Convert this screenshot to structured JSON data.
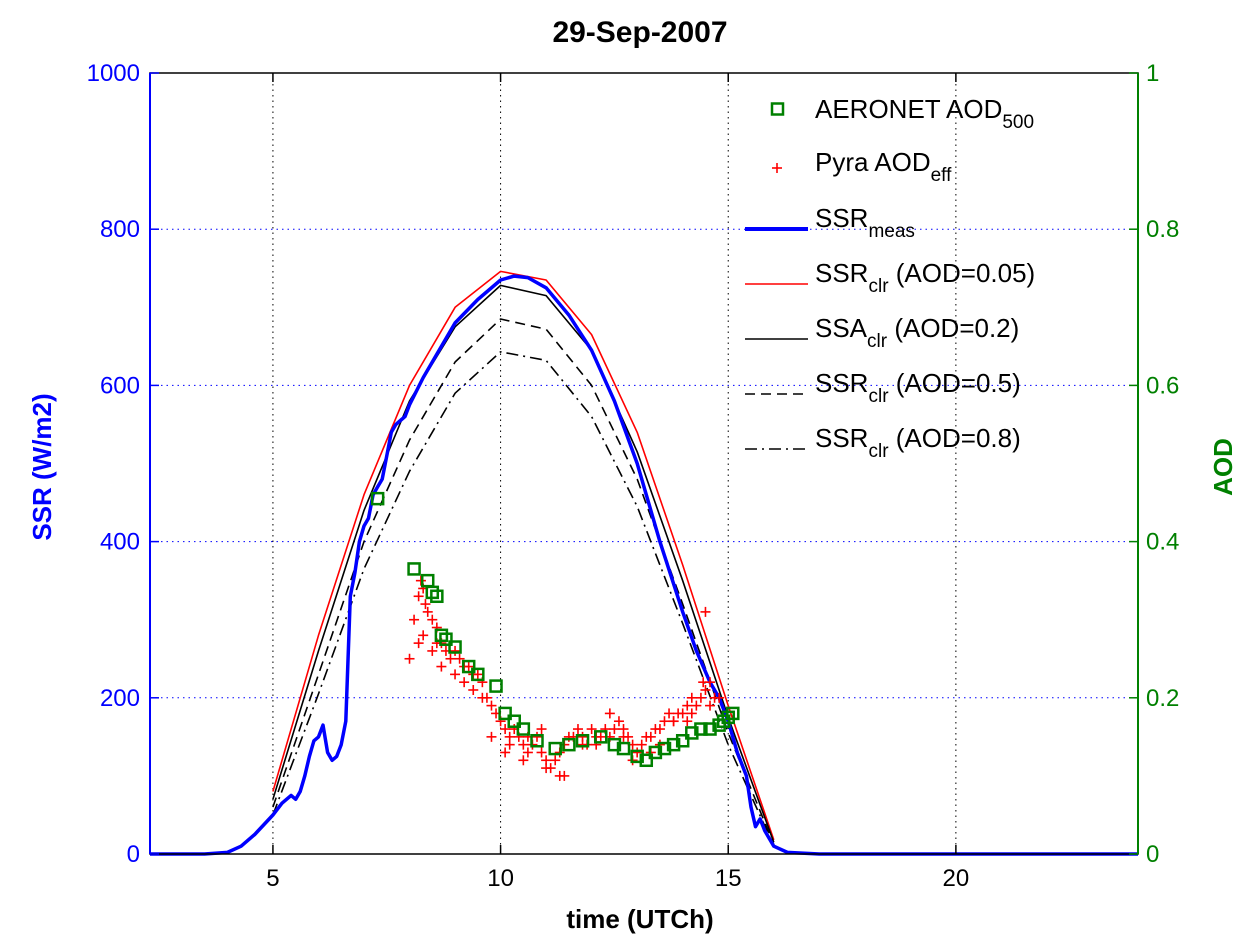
{
  "chart_data": {
    "type": "line",
    "title": "29-Sep-2007",
    "xlabel": "time (UTCh)",
    "ylabel_left": "SSR (W/m2)",
    "ylabel_right": "AOD",
    "xlim": [
      2.3,
      24
    ],
    "ylim_left": [
      0,
      1000
    ],
    "ylim_right": [
      0,
      1
    ],
    "xticks": [
      5,
      10,
      15,
      20
    ],
    "yticks_left": [
      0,
      200,
      400,
      600,
      800,
      1000
    ],
    "yticks_right": [
      "0",
      "0.2",
      "0.4",
      "0.6",
      "0.8",
      "1"
    ],
    "grid": true,
    "legend_position": "top-right",
    "colors": {
      "left_axis": "#0000ff",
      "right_axis": "#008000",
      "ssr_meas": "#0000ff",
      "ssr_clr_005": "#ff0000",
      "pyra": "#ff0000",
      "aeronet": "#008000",
      "black": "#000000"
    },
    "legend": [
      {
        "key": "aeronet",
        "text": "AERONET AOD",
        "sub": "500",
        "after": ""
      },
      {
        "key": "pyra",
        "text": "Pyra AOD",
        "sub": "eff",
        "after": ""
      },
      {
        "key": "ssr_meas",
        "text": "SSR",
        "sub": "meas",
        "after": ""
      },
      {
        "key": "ssr_clr_005",
        "text": "SSR",
        "sub": "clr",
        "after": " (AOD=0.05)"
      },
      {
        "key": "ssa_clr_02",
        "text": "SSA",
        "sub": "clr",
        "after": " (AOD=0.2)"
      },
      {
        "key": "ssr_clr_05",
        "text": "SSR",
        "sub": "clr",
        "after": " (AOD=0.5)"
      },
      {
        "key": "ssr_clr_08",
        "text": "SSR",
        "sub": "clr",
        "after": " (AOD=0.8)"
      }
    ],
    "series": [
      {
        "key": "ssr_clr_005",
        "axis": "left",
        "style": "solid",
        "color": "#ff0000",
        "x": [
          5,
          6,
          7,
          8,
          9,
          10,
          11,
          12,
          13,
          14,
          15,
          16
        ],
        "y": [
          80,
          280,
          460,
          600,
          700,
          746,
          735,
          665,
          540,
          370,
          190,
          18
        ]
      },
      {
        "key": "ssa_clr_02",
        "axis": "left",
        "style": "solid",
        "color": "#000000",
        "x": [
          5,
          6,
          7,
          8,
          9,
          10,
          11,
          12,
          13,
          14,
          15,
          16
        ],
        "y": [
          70,
          260,
          440,
          580,
          675,
          728,
          715,
          645,
          515,
          350,
          175,
          15
        ]
      },
      {
        "key": "ssr_clr_05",
        "axis": "left",
        "style": "dashed",
        "color": "#000000",
        "x": [
          5,
          6,
          7,
          8,
          9,
          10,
          11,
          12,
          13,
          14,
          15,
          16
        ],
        "y": [
          60,
          230,
          400,
          530,
          630,
          685,
          672,
          600,
          480,
          320,
          155,
          12
        ]
      },
      {
        "key": "ssr_clr_08",
        "axis": "left",
        "style": "dashdot",
        "color": "#000000",
        "x": [
          5,
          6,
          7,
          8,
          9,
          10,
          11,
          12,
          13,
          14,
          15,
          16
        ],
        "y": [
          50,
          205,
          365,
          490,
          590,
          643,
          632,
          560,
          445,
          295,
          140,
          10
        ]
      },
      {
        "key": "ssr_meas",
        "axis": "left",
        "style": "solid",
        "color": "#0000ff",
        "x": [
          2.3,
          3.5,
          4.0,
          4.3,
          4.6,
          5.0,
          5.2,
          5.4,
          5.5,
          5.6,
          5.7,
          5.8,
          5.9,
          6.0,
          6.1,
          6.2,
          6.3,
          6.4,
          6.5,
          6.6,
          6.7,
          6.8,
          6.9,
          7.0,
          7.1,
          7.2,
          7.3,
          7.4,
          7.5,
          7.6,
          7.7,
          7.8,
          7.9,
          8.0,
          8.3,
          8.6,
          9.0,
          9.5,
          10.0,
          10.3,
          10.6,
          11.0,
          11.5,
          12.0,
          12.5,
          13.0,
          13.5,
          14.0,
          14.3,
          14.6,
          14.8,
          15.0,
          15.2,
          15.4,
          15.5,
          15.6,
          15.7,
          15.8,
          16.0,
          16.3,
          17.0,
          24.0
        ],
        "y": [
          0,
          0,
          2,
          10,
          25,
          50,
          65,
          75,
          70,
          80,
          100,
          125,
          145,
          150,
          165,
          130,
          120,
          125,
          140,
          170,
          330,
          360,
          400,
          420,
          430,
          460,
          470,
          480,
          510,
          540,
          550,
          555,
          560,
          575,
          610,
          640,
          680,
          710,
          735,
          740,
          738,
          725,
          690,
          645,
          580,
          500,
          400,
          310,
          260,
          220,
          200,
          170,
          130,
          100,
          60,
          35,
          45,
          30,
          10,
          2,
          0,
          0
        ]
      }
    ],
    "aeronet_aod": {
      "x": [
        7.3,
        8.1,
        8.4,
        8.5,
        8.6,
        8.7,
        8.8,
        9.0,
        9.3,
        9.5,
        9.9,
        10.1,
        10.3,
        10.5,
        10.8,
        11.2,
        11.5,
        11.8,
        12.2,
        12.5,
        12.7,
        13.0,
        13.2,
        13.4,
        13.6,
        13.8,
        14.0,
        14.2,
        14.4,
        14.6,
        14.8,
        14.9,
        15.0,
        15.1
      ],
      "y": [
        0.455,
        0.365,
        0.35,
        0.335,
        0.33,
        0.28,
        0.275,
        0.265,
        0.24,
        0.23,
        0.215,
        0.18,
        0.17,
        0.16,
        0.145,
        0.135,
        0.14,
        0.145,
        0.15,
        0.14,
        0.135,
        0.125,
        0.12,
        0.13,
        0.135,
        0.14,
        0.145,
        0.155,
        0.16,
        0.16,
        0.165,
        0.17,
        0.175,
        0.18
      ]
    },
    "pyra_aod": {
      "x": [
        8.0,
        8.1,
        8.2,
        8.25,
        8.3,
        8.35,
        8.4,
        8.5,
        8.6,
        8.7,
        8.8,
        8.9,
        9.0,
        9.1,
        9.2,
        9.3,
        9.4,
        9.5,
        9.6,
        9.7,
        9.8,
        9.9,
        10.0,
        10.1,
        10.2,
        10.3,
        10.4,
        10.5,
        10.6,
        10.7,
        10.8,
        10.9,
        11.0,
        11.1,
        11.2,
        11.3,
        11.4,
        11.5,
        11.6,
        11.7,
        11.8,
        11.9,
        12.0,
        12.1,
        12.2,
        12.3,
        12.4,
        12.5,
        12.6,
        12.7,
        12.8,
        12.9,
        13.0,
        13.1,
        13.2,
        13.3,
        13.4,
        13.5,
        13.6,
        13.7,
        13.8,
        13.9,
        14.0,
        14.1,
        14.2,
        14.3,
        14.4,
        14.5,
        14.6,
        14.7,
        14.8,
        8.3,
        8.5,
        8.7,
        9.0,
        9.4,
        9.8,
        10.2,
        10.6,
        11.0,
        11.4,
        11.8,
        12.4,
        12.9,
        13.3,
        13.8,
        14.2,
        14.5,
        14.45,
        8.2,
        8.6,
        9.2,
        9.6,
        10.1,
        10.5,
        10.9,
        11.3,
        12.1,
        12.7,
        13.5,
        14.1,
        14.6
      ],
      "y": [
        0.25,
        0.3,
        0.33,
        0.35,
        0.34,
        0.32,
        0.31,
        0.3,
        0.27,
        0.27,
        0.26,
        0.25,
        0.26,
        0.25,
        0.24,
        0.24,
        0.23,
        0.23,
        0.22,
        0.2,
        0.19,
        0.18,
        0.17,
        0.16,
        0.15,
        0.16,
        0.15,
        0.14,
        0.15,
        0.14,
        0.15,
        0.13,
        0.12,
        0.11,
        0.12,
        0.13,
        0.14,
        0.15,
        0.15,
        0.16,
        0.15,
        0.14,
        0.16,
        0.15,
        0.15,
        0.16,
        0.15,
        0.16,
        0.17,
        0.16,
        0.15,
        0.14,
        0.13,
        0.14,
        0.15,
        0.15,
        0.16,
        0.16,
        0.17,
        0.18,
        0.17,
        0.18,
        0.18,
        0.19,
        0.18,
        0.19,
        0.2,
        0.21,
        0.19,
        0.2,
        0.2,
        0.28,
        0.26,
        0.24,
        0.23,
        0.21,
        0.15,
        0.14,
        0.13,
        0.11,
        0.1,
        0.14,
        0.18,
        0.12,
        0.13,
        0.17,
        0.2,
        0.31,
        0.22,
        0.27,
        0.29,
        0.22,
        0.2,
        0.13,
        0.12,
        0.16,
        0.1,
        0.14,
        0.15,
        0.14,
        0.17,
        0.22
      ]
    }
  }
}
